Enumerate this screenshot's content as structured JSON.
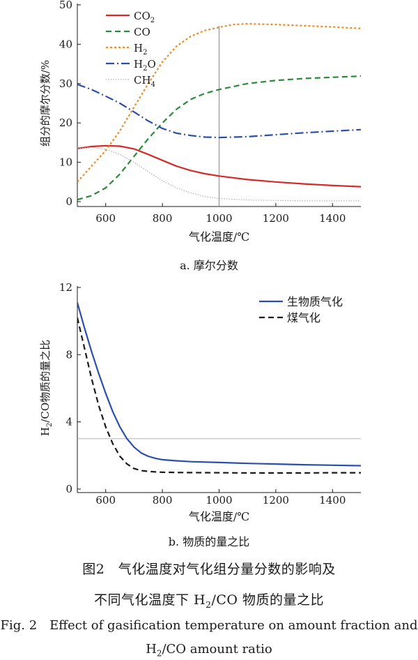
{
  "chart_data": [
    {
      "type": "line",
      "panel_caption": "a. 摩尔分数",
      "xlabel": "气化温度/℃",
      "ylabel": "组分的摩尔分数/%",
      "xlim": [
        500,
        1500
      ],
      "ylim": [
        0,
        50
      ],
      "xticks": [
        600,
        800,
        1000,
        1200,
        1400
      ],
      "yticks": [
        0,
        10,
        20,
        30,
        40,
        50
      ],
      "reference_line_x": 1000,
      "legend_position": "top-left",
      "series": [
        {
          "name": "CO2",
          "label_main": "CO",
          "label_sub": "2",
          "color": "#d42a2a",
          "dash": "solid",
          "x": [
            500,
            550,
            600,
            650,
            700,
            750,
            800,
            850,
            900,
            950,
            1000,
            1100,
            1200,
            1300,
            1400,
            1500
          ],
          "y": [
            13.5,
            14.0,
            14.2,
            14.1,
            13.4,
            12.0,
            10.5,
            9.0,
            7.9,
            7.1,
            6.5,
            5.6,
            5.0,
            4.5,
            4.1,
            3.8
          ]
        },
        {
          "name": "CO",
          "label_main": "CO",
          "label_sub": "",
          "color": "#2a8a3a",
          "dash": "8 5",
          "x": [
            500,
            550,
            600,
            650,
            700,
            750,
            800,
            850,
            900,
            950,
            1000,
            1100,
            1200,
            1300,
            1400,
            1500
          ],
          "y": [
            0.5,
            1.5,
            3.5,
            7.0,
            11.5,
            16.0,
            20.0,
            23.5,
            26.0,
            27.5,
            28.5,
            30.0,
            30.8,
            31.3,
            31.6,
            31.9
          ]
        },
        {
          "name": "H2",
          "label_main": "H",
          "label_sub": "2",
          "color": "#f08a28",
          "dash": "3 3",
          "x": [
            500,
            550,
            600,
            650,
            700,
            750,
            800,
            850,
            900,
            950,
            1000,
            1050,
            1100,
            1200,
            1300,
            1400,
            1500
          ],
          "y": [
            5.0,
            9.0,
            13.0,
            18.0,
            24.0,
            30.0,
            35.5,
            39.5,
            42.0,
            43.5,
            44.3,
            45.0,
            45.2,
            45.0,
            44.7,
            44.4,
            44.0
          ]
        },
        {
          "name": "H2O",
          "label_main": "H",
          "label_sub": "2",
          "label_tail": "O",
          "color": "#2a4faa",
          "dash": "12 4 2 4",
          "x": [
            500,
            550,
            600,
            650,
            700,
            750,
            800,
            850,
            900,
            950,
            1000,
            1100,
            1200,
            1300,
            1400,
            1500
          ],
          "y": [
            29.8,
            28.5,
            26.8,
            25.0,
            22.8,
            20.5,
            18.6,
            17.4,
            16.8,
            16.4,
            16.3,
            16.5,
            17.0,
            17.5,
            17.9,
            18.3
          ]
        },
        {
          "name": "CH4",
          "label_main": "CH",
          "label_sub": "4",
          "color": "#b0b0b0",
          "dash": "1.5 2",
          "x": [
            500,
            550,
            600,
            650,
            700,
            750,
            800,
            850,
            900,
            950,
            1000,
            1100,
            1200,
            1300,
            1400,
            1500
          ],
          "y": [
            13.5,
            13.8,
            13.3,
            12.0,
            10.0,
            7.6,
            5.3,
            3.5,
            2.2,
            1.3,
            0.8,
            0.4,
            0.3,
            0.2,
            0.2,
            0.2
          ]
        }
      ]
    },
    {
      "type": "line",
      "panel_caption": "b. 物质的量之比",
      "xlabel": "气化温度/℃",
      "ylabel_main": "H",
      "ylabel_sub": "2",
      "ylabel_rest": "/CO物质的量之比",
      "xlim": [
        500,
        1500
      ],
      "ylim": [
        0,
        12
      ],
      "xticks": [
        600,
        800,
        1000,
        1200,
        1400
      ],
      "yticks": [
        0,
        4,
        8,
        12
      ],
      "reference_line_y": 3,
      "legend_position": "top-right",
      "series": [
        {
          "name": "生物质气化",
          "color": "#2a4faa",
          "dash": "solid",
          "x": [
            500,
            525,
            550,
            575,
            600,
            625,
            650,
            675,
            700,
            725,
            750,
            775,
            800,
            850,
            900,
            1000,
            1100,
            1200,
            1300,
            1400,
            1500
          ],
          "y": [
            11.1,
            9.6,
            8.2,
            6.9,
            5.7,
            4.6,
            3.7,
            3.0,
            2.5,
            2.15,
            1.95,
            1.83,
            1.75,
            1.68,
            1.63,
            1.58,
            1.53,
            1.49,
            1.45,
            1.42,
            1.39
          ]
        },
        {
          "name": "煤气化",
          "color": "#1a1a1a",
          "dash": "8 5",
          "x": [
            500,
            525,
            550,
            575,
            600,
            625,
            650,
            675,
            700,
            725,
            750,
            775,
            800,
            850,
            900,
            1000,
            1100,
            1200,
            1300,
            1400,
            1500
          ],
          "y": [
            10.2,
            8.4,
            6.6,
            5.0,
            3.7,
            2.7,
            1.95,
            1.5,
            1.22,
            1.1,
            1.05,
            1.02,
            1.0,
            0.99,
            0.98,
            0.97,
            0.96,
            0.96,
            0.96,
            0.97,
            0.97
          ]
        }
      ]
    }
  ],
  "captions": {
    "panel_a": "a. 摩尔分数",
    "panel_b": "b. 物质的量之比",
    "fig_cn_line1": "图2　气化温度对气化组分量分数的影响及",
    "fig_cn_line2_pre": "不同气化温度下 H",
    "fig_cn_line2_sub": "2",
    "fig_cn_line2_post": "/CO 物质的量之比",
    "fig_en_line1": "Fig. 2　Effect of gasification temperature on amount fraction and",
    "fig_en_line2_pre": "H",
    "fig_en_line2_sub": "2",
    "fig_en_line2_post": "/CO amount ratio"
  }
}
